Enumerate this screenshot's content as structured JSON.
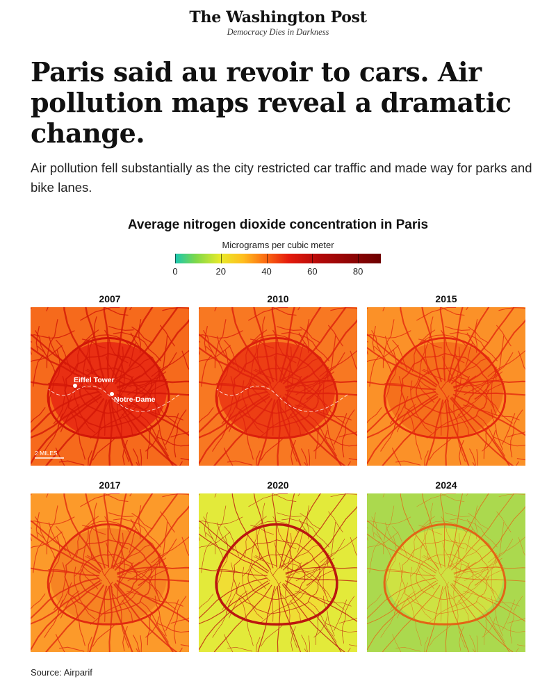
{
  "masthead": {
    "brand": "The Washington Post",
    "tagline": "Democracy Dies in Darkness"
  },
  "headline": "Paris said au revoir to cars. Air pollution maps reveal a dramatic change.",
  "dek": "Air pollution fell substantially as the city restricted car traffic and made way for parks and bike lanes.",
  "chart": {
    "title": "Average nitrogen dioxide concentration in Paris",
    "legend": {
      "unit": "Micrograms per cubic meter",
      "min": 0,
      "max": 90,
      "tick_values": [
        0,
        20,
        40,
        60,
        80
      ],
      "tick_labels": [
        "0",
        "20",
        "40",
        "60",
        "80"
      ],
      "colors": [
        "#19c7b1",
        "#7dd84a",
        "#e8ea2a",
        "#ffbe1e",
        "#fb6a12",
        "#e51b0c",
        "#b30909",
        "#6d0000"
      ]
    },
    "map_labels": {
      "eiffel_tower": "Eiffel Tower",
      "notre_dame": "Notre-Dame",
      "scale": "2 MILES"
    },
    "panels": [
      {
        "year": "2007",
        "background": "#f66a1c",
        "roads": "#d21608",
        "center": "#e62412",
        "road_width": 2.0,
        "ring_width": 3.0
      },
      {
        "year": "2010",
        "background": "#f87822",
        "roads": "#dc1f0c",
        "center": "#eb3412",
        "road_width": 1.9,
        "ring_width": 3.0
      },
      {
        "year": "2015",
        "background": "#fb9128",
        "roads": "#e4280e",
        "center": "#f36a1a",
        "road_width": 1.7,
        "ring_width": 2.8
      },
      {
        "year": "2017",
        "background": "#fc9a2a",
        "roads": "#e02a10",
        "center": "#f58022",
        "road_width": 1.7,
        "ring_width": 2.8
      },
      {
        "year": "2020",
        "background": "#e3ea3a",
        "roads": "#bb1610",
        "center": "#f2dc34",
        "road_width": 1.0,
        "ring_width": 3.6
      },
      {
        "year": "2024",
        "background": "#abd94e",
        "roads": "#e36416",
        "center": "#d3e342",
        "road_width": 0.8,
        "ring_width": 3.0
      }
    ]
  },
  "source": "Source: Airparif"
}
